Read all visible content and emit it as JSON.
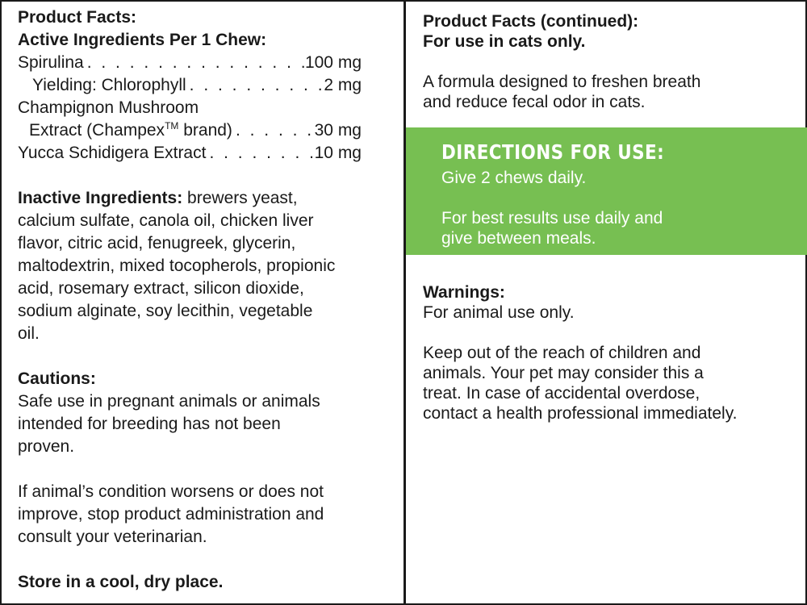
{
  "left": {
    "facts_title": "Product Facts:",
    "active_title": "Active Ingredients Per 1 Chew:",
    "ingredients": [
      {
        "name": "Spirulina",
        "amount": "100 mg"
      },
      {
        "name": "Yielding: Chlorophyll",
        "amount": "2 mg"
      },
      {
        "name": "Champignon Mushroom",
        "amount": ""
      },
      {
        "name": "Extract (Champex",
        "tm": "TM",
        "name_after": " brand)",
        "amount": "30 mg"
      },
      {
        "name": "Yucca Schidigera Extract",
        "amount": "10 mg"
      }
    ],
    "inactive_label": "Inactive Ingredients:",
    "inactive_lines": [
      " brewers yeast,",
      "calcium sulfate, canola oil, chicken liver",
      "flavor, citric acid, fenugreek, glycerin,",
      "maltodextrin, mixed tocopherols, propionic",
      "acid, rosemary extract, silicon dioxide,",
      "sodium alginate, soy lecithin, vegetable",
      "oil."
    ],
    "cautions_title": "Cautions:",
    "cautions_lines": [
      "Safe use in pregnant animals or animals",
      "intended for breeding has not been",
      "proven."
    ],
    "condition_lines": [
      "If animal’s condition worsens or does not",
      "improve, stop product administration and",
      "consult your veterinarian."
    ],
    "storage": "Store in a cool, dry place."
  },
  "right": {
    "facts_title": "Product Facts (continued):",
    "cats_only": "For use in cats only.",
    "formula_lines": [
      "A formula designed to freshen breath",
      "and reduce fecal odor in cats."
    ],
    "directions": {
      "title": "DIRECTIONS FOR USE:",
      "line1": "Give 2 chews daily.",
      "line2a": "For best results use daily and",
      "line2b": "give between meals.",
      "bg_color": "#77bf52"
    },
    "warnings_title": "Warnings:",
    "warnings_line": "For animal use only.",
    "keep_lines": [
      "Keep out of the reach of children and",
      "animals. Your pet may consider this a",
      "treat. In case of accidental overdose,",
      "contact a health professional immediately."
    ]
  }
}
